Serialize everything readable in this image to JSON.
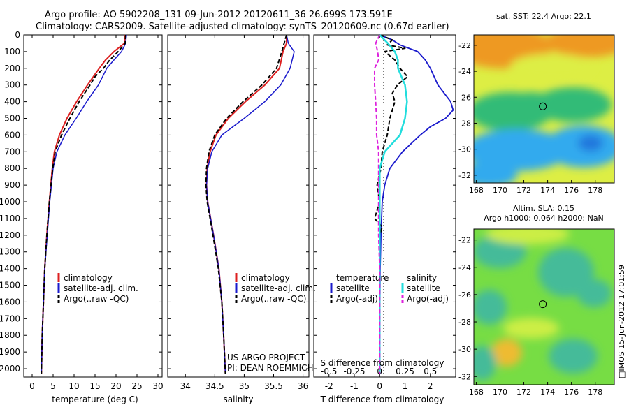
{
  "header": {
    "line1": "Argo profile: AO 5902208_131 09-Jun-2012 20120611_36 26.699S 173.591E",
    "line2": "Climatology: CARS2009. Satellite-adjusted climatology: synTS_20120609.nc (0.67d earlier)"
  },
  "side_label": "□IMOS 15-Jun-2012 17:01:59",
  "project": {
    "line1": "US ARGO PROJECT",
    "line2": "PI: DEAN ROEMMICH"
  },
  "colors": {
    "climatology": "#dd2020",
    "satellite": "#1a1acc",
    "argo": "#000000",
    "sal_satellite": "#22dddd",
    "sal_argo": "#dd22dd",
    "sst_dark_blue": "#2277dd",
    "sst_yellow": "#ddee44",
    "sst_orange": "#ee9922",
    "sla_green": "#77dd44",
    "sla_teal": "#44bb99",
    "sla_yellow": "#ccee44"
  },
  "chart_data": [
    {
      "type": "line",
      "name": "temperature-profile",
      "xlabel": "temperature (deg C)",
      "ylabel": "",
      "xlim": [
        -2,
        31
      ],
      "ylim": [
        2050,
        0
      ],
      "x_ticks": [
        0,
        5,
        10,
        15,
        20,
        25,
        30
      ],
      "y_ticks": [
        0,
        100,
        200,
        300,
        400,
        500,
        600,
        700,
        800,
        900,
        1000,
        1100,
        1200,
        1300,
        1400,
        1500,
        1600,
        1700,
        1800,
        1900,
        2000
      ],
      "legend": [
        "climatology",
        "satellite-adj. clim.",
        "Argo(..raw -QC)"
      ],
      "series": [
        {
          "name": "climatology",
          "depth": [
            0,
            50,
            100,
            150,
            200,
            300,
            400,
            500,
            600,
            700,
            800,
            1000,
            1200,
            1400,
            1600,
            1800,
            2030
          ],
          "values": [
            22.2,
            22.0,
            19.5,
            17.5,
            16.0,
            13.2,
            10.6,
            8.3,
            6.5,
            5.3,
            4.8,
            4.1,
            3.5,
            3.0,
            2.7,
            2.4,
            2.2
          ]
        },
        {
          "name": "satellite-adj. clim.",
          "depth": [
            0,
            50,
            100,
            150,
            200,
            300,
            400,
            500,
            600,
            700,
            800,
            1000,
            1200,
            1400,
            1600,
            1800,
            2030
          ],
          "values": [
            22.5,
            22.3,
            21.3,
            19.5,
            17.8,
            15.8,
            13.0,
            10.5,
            7.8,
            5.9,
            5.0,
            4.2,
            3.6,
            3.0,
            2.7,
            2.4,
            2.2
          ]
        },
        {
          "name": "Argo(..raw -QC)",
          "depth": [
            0,
            50,
            100,
            150,
            200,
            250,
            300,
            400,
            500,
            600,
            700,
            800,
            1000,
            1200,
            1400,
            1600,
            1800,
            2030
          ],
          "values": [
            22.3,
            22.2,
            20.5,
            18.5,
            17.0,
            15.0,
            13.8,
            11.2,
            9.0,
            7.0,
            5.5,
            4.9,
            4.1,
            3.5,
            3.0,
            2.7,
            2.4,
            2.2
          ]
        }
      ]
    },
    {
      "type": "line",
      "name": "salinity-profile",
      "xlabel": "salinity",
      "ylabel": "",
      "xlim": [
        33.7,
        36.1
      ],
      "ylim": [
        2050,
        0
      ],
      "x_ticks": [
        34,
        34.5,
        35,
        35.5,
        36
      ],
      "legend": [
        "climatology",
        "satellite-adj. clim.",
        "Argo(..raw -QC)"
      ],
      "series": [
        {
          "name": "climatology",
          "depth": [
            0,
            50,
            100,
            200,
            300,
            400,
            500,
            600,
            700,
            800,
            900,
            1000,
            1200,
            1400,
            1600,
            1800,
            2030
          ],
          "values": [
            35.72,
            35.72,
            35.66,
            35.6,
            35.35,
            35.02,
            34.73,
            34.52,
            34.42,
            34.37,
            34.36,
            34.38,
            34.48,
            34.57,
            34.62,
            34.65,
            34.68
          ]
        },
        {
          "name": "satellite-adj. clim.",
          "depth": [
            0,
            50,
            100,
            200,
            300,
            400,
            500,
            600,
            700,
            800,
            900,
            1000,
            1200,
            1400,
            1600,
            1800,
            2030
          ],
          "values": [
            35.72,
            35.75,
            35.85,
            35.78,
            35.62,
            35.35,
            35.0,
            34.62,
            34.45,
            34.38,
            34.36,
            34.38,
            34.48,
            34.57,
            34.62,
            34.65,
            34.68
          ]
        },
        {
          "name": "Argo(..raw -QC)",
          "depth": [
            0,
            50,
            100,
            200,
            300,
            400,
            500,
            600,
            700,
            800,
            900,
            1000,
            1200,
            1400,
            1600,
            1800,
            2030
          ],
          "values": [
            35.72,
            35.68,
            35.64,
            35.55,
            35.3,
            34.98,
            34.7,
            34.5,
            34.4,
            34.36,
            34.35,
            34.37,
            34.47,
            34.56,
            34.62,
            34.65,
            34.68
          ]
        }
      ]
    },
    {
      "type": "line",
      "name": "difference-profile",
      "xlabel": "T difference from climatology",
      "xlabel2": "S difference from climatology",
      "xlim": [
        -2.6,
        3.0
      ],
      "ylim": [
        2050,
        0
      ],
      "x_ticks": [
        -2,
        -1,
        0,
        1,
        2
      ],
      "x2_ticks": [
        -0.5,
        -0.25,
        0,
        0.25,
        0.5
      ],
      "legend_left_title": "temperature",
      "legend_right_title": "salinity",
      "legend": [
        "satellite",
        "Argo(-adj)",
        "satellite",
        "Argo(-adj)"
      ],
      "series": [
        {
          "name": "T satellite",
          "depth": [
            0,
            30,
            60,
            100,
            150,
            200,
            300,
            400,
            450,
            500,
            550,
            600,
            700,
            800,
            900,
            1000,
            1200,
            1400,
            1600,
            1800,
            2030
          ],
          "values": [
            0.0,
            0.5,
            0.8,
            1.5,
            1.8,
            2.0,
            2.3,
            2.8,
            2.9,
            2.6,
            2.0,
            1.6,
            0.9,
            0.4,
            0.2,
            0.1,
            0.05,
            0.02,
            0.01,
            0.0,
            0.0
          ]
        },
        {
          "name": "T Argo(-adj)",
          "depth": [
            0,
            30,
            60,
            80,
            100,
            150,
            200,
            250,
            300,
            350,
            400,
            500,
            600,
            700,
            800,
            900,
            1000,
            1100,
            1150,
            1200,
            1400,
            1600,
            1800,
            2030
          ],
          "values": [
            0.0,
            0.5,
            0.3,
            1.0,
            0.2,
            0.6,
            0.8,
            1.1,
            0.7,
            0.5,
            0.6,
            0.4,
            0.3,
            0.1,
            0.05,
            -0.1,
            0.0,
            -0.2,
            0.1,
            0.0,
            0.0,
            0.0,
            0.0,
            0.0
          ]
        },
        {
          "name": "S satellite",
          "depth": [
            0,
            50,
            100,
            150,
            200,
            300,
            400,
            500,
            600,
            700,
            800,
            1000,
            1200,
            1400,
            1600,
            1800,
            2030
          ],
          "values": [
            0.0,
            0.08,
            0.15,
            0.18,
            0.18,
            0.25,
            0.27,
            0.25,
            0.2,
            0.05,
            0.0,
            0.0,
            0.0,
            0.0,
            0.0,
            0.0,
            0.0
          ]
        },
        {
          "name": "S Argo(-adj)",
          "depth": [
            0,
            50,
            100,
            150,
            200,
            300,
            400,
            500,
            600,
            700,
            800,
            1000,
            1200,
            1400,
            1600,
            1800,
            2030
          ],
          "values": [
            0.0,
            -0.04,
            -0.02,
            -0.01,
            -0.05,
            -0.05,
            -0.04,
            -0.03,
            -0.03,
            -0.01,
            -0.01,
            -0.01,
            -0.01,
            0.0,
            0.0,
            0.0,
            0.0
          ]
        }
      ]
    },
    {
      "type": "heatmap",
      "name": "sst-map",
      "title": "sat. SST: 22.4  Argo: 22.1",
      "x_ticks": [
        168,
        170,
        172,
        174,
        176,
        178
      ],
      "y_ticks": [
        -22,
        -24,
        -26,
        -28,
        -30,
        -32
      ],
      "xlim": [
        167.8,
        179.6
      ],
      "ylim": [
        -32.6,
        -21.2
      ],
      "marker": {
        "lon": 173.591,
        "lat": -26.699
      }
    },
    {
      "type": "heatmap",
      "name": "sla-map",
      "title": "Altim. SLA: 0.15",
      "subtitle": "Argo h1000: 0.064 h2000: NaN",
      "x_ticks": [
        168,
        170,
        172,
        174,
        176,
        178
      ],
      "y_ticks": [
        -22,
        -24,
        -26,
        -28,
        -30,
        -32
      ],
      "xlim": [
        167.8,
        179.6
      ],
      "ylim": [
        -32.6,
        -21.2
      ],
      "marker": {
        "lon": 173.591,
        "lat": -26.699
      }
    }
  ]
}
